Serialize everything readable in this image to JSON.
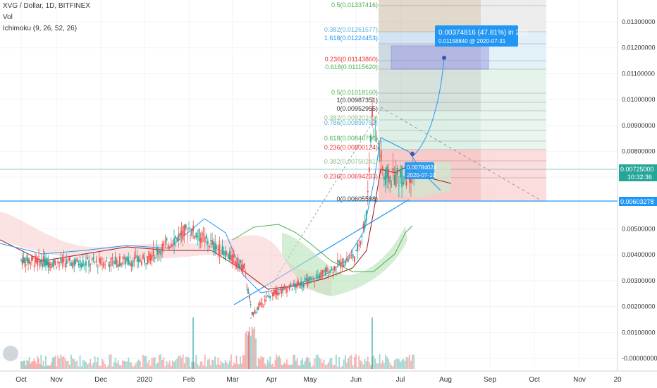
{
  "header": {
    "symbol": "XVG / Dollar, 1D, BITFINEX",
    "vol": "Vol",
    "ichimoku": "Ichimoku (9, 26, 52, 26)"
  },
  "colors": {
    "up": "#26a69a",
    "down": "#ef5350",
    "kijun": "#991515",
    "tenkan": "#2196f3",
    "senkou_b": "#4caf50",
    "price_line": "#2196f3"
  },
  "price_labels": {
    "current": "0.00725000",
    "countdown": "10:32:36",
    "support": "0.00603278"
  },
  "measure_box": {
    "line1": "0.00374816 (47.81%) in 21d",
    "line2": "0.01158840 @ 2020-07-31"
  },
  "entry_label": {
    "line1": "0.00784024",
    "line2": "2020-07-10"
  },
  "fib_labels": [
    "0.5(0.01337416)",
    "0.382(0.01261577)",
    "1.618(0.01224453)",
    "0.236(0.01143860)",
    "0.618(0.01115620)",
    "0.5(0.01018160)",
    "1(0.00987351)",
    "0(0.00952955)",
    "0.382(0.00920241)",
    "0.786(0.00899752)",
    "0.618(0.00840790)",
    "0.236(0.00800124)",
    "0.382(0.00750241)",
    "0.236(0.00694233)",
    "0(0.00605598)"
  ],
  "icon_names": {
    "logo": "tradingview-logo-icon"
  },
  "chart_data": {
    "type": "line",
    "title": "XVG / Dollar, 1D, BITFINEX",
    "y_axis_ticks": [
      "0.01300000",
      "0.01200000",
      "0.01100000",
      "0.01000000",
      "0.00900000",
      "0.00800000",
      "0.00700000",
      "0.00500000",
      "0.00400000",
      "0.00300000",
      "0.00200000",
      "0.00100000",
      "-0.00000000"
    ],
    "x_axis_ticks": [
      "Oct",
      "Nov",
      "Dec",
      "2020",
      "Feb",
      "Mar",
      "Apr",
      "May",
      "Jun",
      "Jul",
      "Aug",
      "Sep",
      "Oct",
      "Nov",
      "20"
    ],
    "ylim": [
      0.0,
      0.0137
    ],
    "series": [
      {
        "name": "XVG",
        "x": [
          "2019-10",
          "2019-11",
          "2019-12",
          "2020-01",
          "2020-02",
          "2020-03-10",
          "2020-03-16",
          "2020-04",
          "2020-05",
          "2020-06-01",
          "2020-06-08",
          "2020-06-12",
          "2020-06-20",
          "2020-07-01",
          "2020-07-10"
        ],
        "values": [
          0.0038,
          0.0037,
          0.0037,
          0.0038,
          0.005,
          0.0035,
          0.0017,
          0.0025,
          0.003,
          0.004,
          0.0055,
          0.0095,
          0.007,
          0.007,
          0.0072
        ]
      }
    ],
    "grid": true,
    "legend": "top-left"
  }
}
